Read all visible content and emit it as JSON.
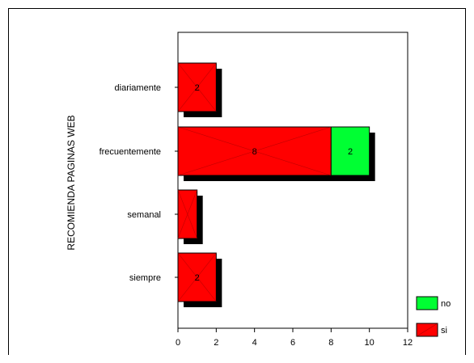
{
  "chart_data": {
    "type": "bar",
    "orientation": "horizontal",
    "stacked": true,
    "ylabel": "RECOMIENDA PAGINAS WEB",
    "xlabel": "",
    "title": "",
    "categories": [
      "diariamente",
      "frecuentemente",
      "semanal",
      "siempre"
    ],
    "series": [
      {
        "name": "si",
        "color": "#ff0000",
        "values": [
          2,
          8,
          1,
          2
        ],
        "labels": [
          "2",
          "8",
          "",
          "2"
        ]
      },
      {
        "name": "no",
        "color": "#00ff33",
        "values": [
          0,
          2,
          0,
          0
        ],
        "labels": [
          "",
          "2",
          "",
          ""
        ]
      }
    ],
    "xlim": [
      0,
      12
    ],
    "xticks": [
      "0",
      "2",
      "4",
      "6",
      "8",
      "10",
      "12"
    ],
    "legend": {
      "placement": "bottom-right",
      "order": [
        "no",
        "si"
      ]
    },
    "grid": false
  }
}
